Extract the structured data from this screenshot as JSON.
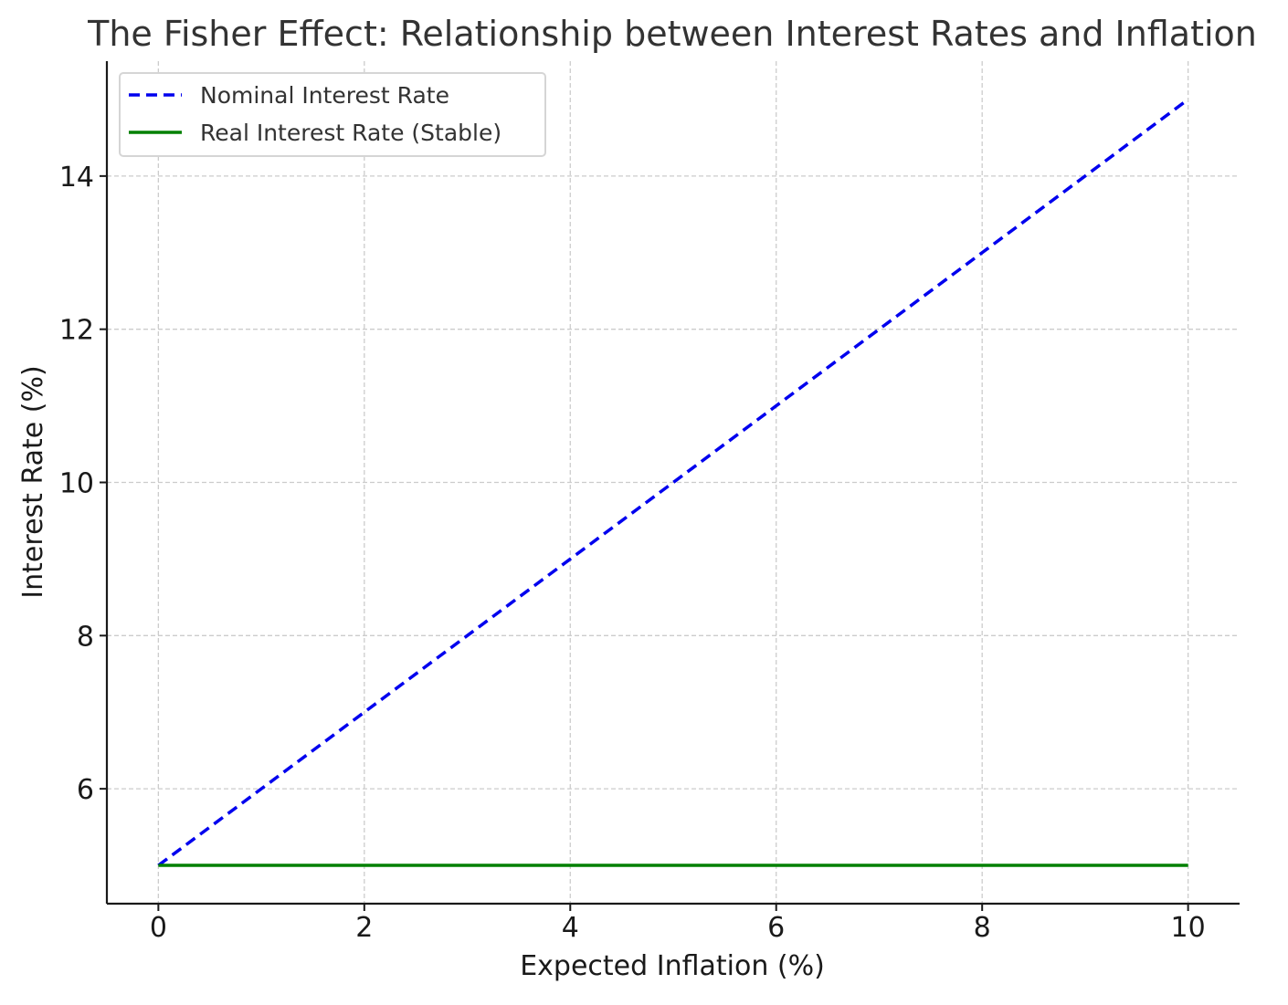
{
  "chart_data": {
    "type": "line",
    "title": "The Fisher Effect: Relationship between Interest Rates and Inflation",
    "xlabel": "Expected Inflation (%)",
    "ylabel": "Interest Rate (%)",
    "xlim": [
      -0.5,
      10.5
    ],
    "ylim": [
      4.5,
      15.5
    ],
    "xticks": [
      0,
      2,
      4,
      6,
      8,
      10
    ],
    "yticks": [
      6,
      8,
      10,
      12,
      14
    ],
    "xtick_labels": [
      "0",
      "2",
      "4",
      "6",
      "8",
      "10"
    ],
    "ytick_labels": [
      "6",
      "8",
      "10",
      "12",
      "14"
    ],
    "grid": true,
    "legend_position": "top-left",
    "x": [
      0,
      1,
      2,
      3,
      4,
      5,
      6,
      7,
      8,
      9,
      10
    ],
    "series": [
      {
        "name": "Nominal Interest Rate",
        "values": [
          5,
          6,
          7,
          8,
          9,
          10,
          11,
          12,
          13,
          14,
          15
        ],
        "color": "#0000ee",
        "style": "dashed"
      },
      {
        "name": "Real Interest Rate (Stable)",
        "values": [
          5,
          5,
          5,
          5,
          5,
          5,
          5,
          5,
          5,
          5,
          5
        ],
        "color": "#008000",
        "style": "solid"
      }
    ]
  }
}
